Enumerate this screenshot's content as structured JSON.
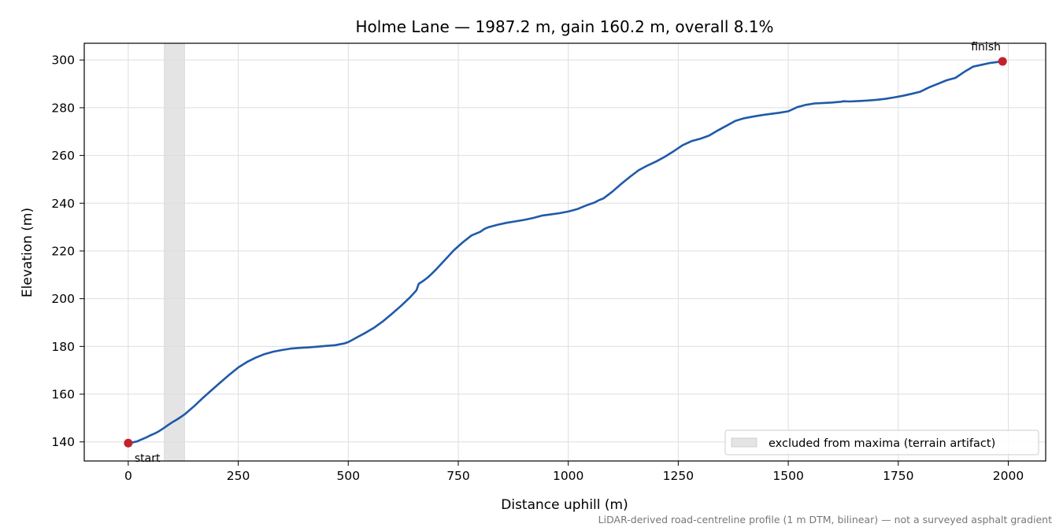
{
  "chart_data": {
    "type": "line",
    "title": "Holme Lane — 1987.2 m, gain 160.2 m, overall 8.1%",
    "xlabel": "Distance uphill (m)",
    "ylabel": "Elevation (m)",
    "xlim": [
      -100,
      2085
    ],
    "ylim": [
      132,
      307
    ],
    "xticks": [
      0,
      250,
      500,
      750,
      1000,
      1250,
      1500,
      1750,
      2000
    ],
    "yticks": [
      140,
      160,
      180,
      200,
      220,
      240,
      260,
      280,
      300
    ],
    "grid": true,
    "legend_placement": "lower-right",
    "series": [
      {
        "color": "#1f5aa8",
        "x": [
          0,
          10,
          20,
          30,
          40,
          50,
          60,
          70,
          80,
          90,
          100,
          110,
          120,
          130,
          150,
          170,
          190,
          210,
          230,
          250,
          270,
          290,
          310,
          330,
          350,
          370,
          390,
          410,
          430,
          450,
          470,
          490,
          500,
          510,
          520,
          540,
          560,
          580,
          600,
          620,
          640,
          655,
          660,
          665,
          670,
          680,
          690,
          700,
          720,
          740,
          760,
          780,
          800,
          810,
          820,
          840,
          860,
          880,
          900,
          920,
          940,
          960,
          980,
          1000,
          1020,
          1040,
          1060,
          1070,
          1080,
          1100,
          1120,
          1140,
          1160,
          1180,
          1200,
          1220,
          1240,
          1260,
          1280,
          1300,
          1320,
          1340,
          1360,
          1380,
          1400,
          1420,
          1440,
          1460,
          1480,
          1500,
          1520,
          1540,
          1560,
          1580,
          1600,
          1620,
          1625,
          1640,
          1660,
          1680,
          1700,
          1720,
          1740,
          1760,
          1780,
          1800,
          1820,
          1840,
          1860,
          1880,
          1900,
          1920,
          1940,
          1960,
          1987
        ],
        "y": [
          139.5,
          139.8,
          140.2,
          141.0,
          141.8,
          142.7,
          143.5,
          144.5,
          145.7,
          147.0,
          148.2,
          149.3,
          150.5,
          151.8,
          155.0,
          158.5,
          161.8,
          165.0,
          168.2,
          171.2,
          173.5,
          175.3,
          176.8,
          177.8,
          178.5,
          179.1,
          179.4,
          179.6,
          179.9,
          180.2,
          180.5,
          181.2,
          181.8,
          182.8,
          183.8,
          185.8,
          188.0,
          190.7,
          193.8,
          197.0,
          200.5,
          203.5,
          206.2,
          206.8,
          207.4,
          208.8,
          210.5,
          212.3,
          216.3,
          220.3,
          223.6,
          226.5,
          228.0,
          229.3,
          230.0,
          231.0,
          231.8,
          232.4,
          233.0,
          233.8,
          234.8,
          235.3,
          235.8,
          236.5,
          237.5,
          239.0,
          240.3,
          241.3,
          242.0,
          244.8,
          248.0,
          251.0,
          253.8,
          255.8,
          257.5,
          259.5,
          261.8,
          264.3,
          266.0,
          267.0,
          268.3,
          270.5,
          272.5,
          274.5,
          275.6,
          276.3,
          276.9,
          277.4,
          277.9,
          278.5,
          280.2,
          281.2,
          281.8,
          282.0,
          282.2,
          282.5,
          282.7,
          282.6,
          282.8,
          283.0,
          283.3,
          283.7,
          284.3,
          285.0,
          285.8,
          286.7,
          288.5,
          290.0,
          291.5,
          292.5,
          295.0,
          297.2,
          298.0,
          298.8,
          299.4
        ]
      }
    ],
    "excluded_band": {
      "x_start": 82,
      "x_end": 128,
      "color": "#e4e4e4"
    },
    "endpoints": [
      {
        "label": "start",
        "x": 0,
        "y": 139.5
      },
      {
        "label": "finish",
        "x": 1987,
        "y": 299.4
      }
    ],
    "endpoint_color": "#c0232d",
    "legend": [
      {
        "label": "excluded from maxima (terrain artifact)",
        "swatch": "band"
      }
    ],
    "footnote": "LiDAR-derived road-centreline profile (1 m DTM, bilinear) — not a surveyed asphalt gradient"
  }
}
